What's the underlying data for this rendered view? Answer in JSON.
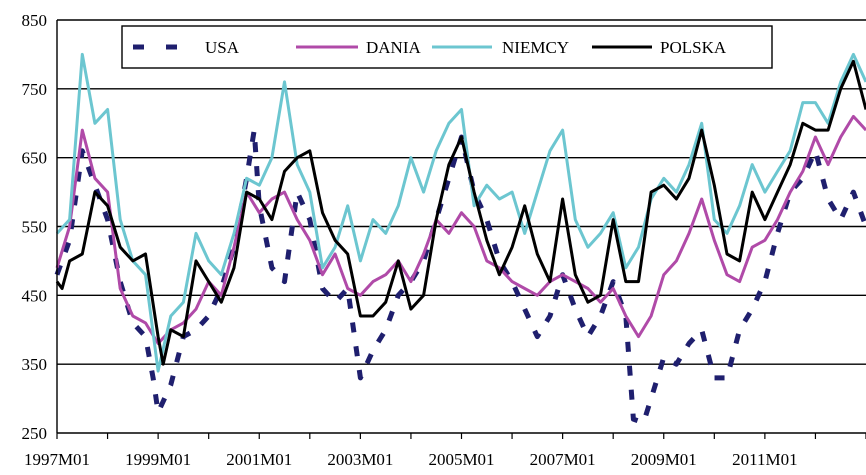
{
  "chart_data": {
    "type": "line",
    "title": "",
    "xlabel": "",
    "ylabel": "",
    "ylim": [
      250,
      850
    ],
    "yticks": [
      250,
      350,
      450,
      550,
      650,
      750,
      850
    ],
    "xlim": [
      1997.0,
      2013.0
    ],
    "xticks": [
      {
        "label": "1997M01",
        "value": 1997
      },
      {
        "label": "1999M01",
        "value": 1999
      },
      {
        "label": "2001M01",
        "value": 2001
      },
      {
        "label": "2003M01",
        "value": 2003
      },
      {
        "label": "2005M01",
        "value": 2005
      },
      {
        "label": "2007M01",
        "value": 2007
      },
      {
        "label": "2009M01",
        "value": 2009
      },
      {
        "label": "2011M01",
        "value": 2011
      }
    ],
    "grid": "horizontal",
    "legend": "top",
    "series": [
      {
        "name": "USA",
        "color": "#1f1f6e",
        "style": "dashed",
        "points": [
          [
            1997.0,
            480
          ],
          [
            1997.25,
            530
          ],
          [
            1997.5,
            660
          ],
          [
            1997.75,
            610
          ],
          [
            1998.0,
            560
          ],
          [
            1998.25,
            470
          ],
          [
            1998.5,
            410
          ],
          [
            1998.75,
            390
          ],
          [
            1998.9,
            330
          ],
          [
            1999.0,
            280
          ],
          [
            1999.25,
            320
          ],
          [
            1999.5,
            390
          ],
          [
            1999.75,
            400
          ],
          [
            2000.0,
            420
          ],
          [
            2000.25,
            460
          ],
          [
            2000.5,
            520
          ],
          [
            2000.75,
            620
          ],
          [
            2000.9,
            690
          ],
          [
            2001.0,
            580
          ],
          [
            2001.25,
            490
          ],
          [
            2001.5,
            470
          ],
          [
            2001.75,
            600
          ],
          [
            2002.0,
            560
          ],
          [
            2002.25,
            460
          ],
          [
            2002.5,
            440
          ],
          [
            2002.75,
            460
          ],
          [
            2003.0,
            330
          ],
          [
            2003.25,
            370
          ],
          [
            2003.5,
            400
          ],
          [
            2003.75,
            450
          ],
          [
            2004.0,
            470
          ],
          [
            2004.25,
            500
          ],
          [
            2004.5,
            560
          ],
          [
            2004.75,
            620
          ],
          [
            2005.0,
            680
          ],
          [
            2005.25,
            600
          ],
          [
            2005.5,
            560
          ],
          [
            2005.75,
            500
          ],
          [
            2006.0,
            470
          ],
          [
            2006.25,
            430
          ],
          [
            2006.5,
            390
          ],
          [
            2006.75,
            420
          ],
          [
            2007.0,
            480
          ],
          [
            2007.25,
            430
          ],
          [
            2007.5,
            390
          ],
          [
            2007.75,
            420
          ],
          [
            2008.0,
            470
          ],
          [
            2008.25,
            420
          ],
          [
            2008.4,
            270
          ],
          [
            2008.6,
            265
          ],
          [
            2008.75,
            300
          ],
          [
            2009.0,
            360
          ],
          [
            2009.25,
            350
          ],
          [
            2009.5,
            380
          ],
          [
            2009.75,
            400
          ],
          [
            2010.0,
            330
          ],
          [
            2010.25,
            330
          ],
          [
            2010.5,
            400
          ],
          [
            2010.75,
            430
          ],
          [
            2011.0,
            470
          ],
          [
            2011.25,
            540
          ],
          [
            2011.5,
            600
          ],
          [
            2011.75,
            620
          ],
          [
            2012.0,
            660
          ],
          [
            2012.25,
            590
          ],
          [
            2012.5,
            560
          ],
          [
            2012.75,
            600
          ],
          [
            2013.0,
            550
          ]
        ]
      },
      {
        "name": "DANIA",
        "color": "#b04aa8",
        "style": "solid",
        "points": [
          [
            1997.0,
            490
          ],
          [
            1997.25,
            550
          ],
          [
            1997.5,
            690
          ],
          [
            1997.75,
            620
          ],
          [
            1998.0,
            600
          ],
          [
            1998.25,
            460
          ],
          [
            1998.5,
            420
          ],
          [
            1998.75,
            410
          ],
          [
            1999.0,
            380
          ],
          [
            1999.25,
            400
          ],
          [
            1999.5,
            410
          ],
          [
            1999.75,
            430
          ],
          [
            2000.0,
            470
          ],
          [
            2000.25,
            450
          ],
          [
            2000.5,
            520
          ],
          [
            2000.75,
            600
          ],
          [
            2001.0,
            570
          ],
          [
            2001.25,
            590
          ],
          [
            2001.5,
            600
          ],
          [
            2001.75,
            560
          ],
          [
            2002.0,
            530
          ],
          [
            2002.25,
            480
          ],
          [
            2002.5,
            510
          ],
          [
            2002.75,
            460
          ],
          [
            2003.0,
            450
          ],
          [
            2003.25,
            470
          ],
          [
            2003.5,
            480
          ],
          [
            2003.75,
            500
          ],
          [
            2004.0,
            470
          ],
          [
            2004.25,
            510
          ],
          [
            2004.5,
            560
          ],
          [
            2004.75,
            540
          ],
          [
            2005.0,
            570
          ],
          [
            2005.25,
            550
          ],
          [
            2005.5,
            500
          ],
          [
            2005.75,
            490
          ],
          [
            2006.0,
            470
          ],
          [
            2006.25,
            460
          ],
          [
            2006.5,
            450
          ],
          [
            2006.75,
            470
          ],
          [
            2007.0,
            480
          ],
          [
            2007.25,
            470
          ],
          [
            2007.5,
            460
          ],
          [
            2007.75,
            440
          ],
          [
            2008.0,
            460
          ],
          [
            2008.25,
            420
          ],
          [
            2008.5,
            390
          ],
          [
            2008.75,
            420
          ],
          [
            2009.0,
            480
          ],
          [
            2009.25,
            500
          ],
          [
            2009.5,
            540
          ],
          [
            2009.75,
            590
          ],
          [
            2010.0,
            530
          ],
          [
            2010.25,
            480
          ],
          [
            2010.5,
            470
          ],
          [
            2010.75,
            520
          ],
          [
            2011.0,
            530
          ],
          [
            2011.25,
            560
          ],
          [
            2011.5,
            600
          ],
          [
            2011.75,
            630
          ],
          [
            2012.0,
            680
          ],
          [
            2012.25,
            640
          ],
          [
            2012.5,
            680
          ],
          [
            2012.75,
            710
          ],
          [
            2013.0,
            690
          ]
        ]
      },
      {
        "name": "NIEMCY",
        "color": "#6cc6d0",
        "style": "solid",
        "points": [
          [
            1997.0,
            540
          ],
          [
            1997.25,
            560
          ],
          [
            1997.5,
            800
          ],
          [
            1997.75,
            700
          ],
          [
            1998.0,
            720
          ],
          [
            1998.25,
            560
          ],
          [
            1998.5,
            500
          ],
          [
            1998.75,
            480
          ],
          [
            1999.0,
            340
          ],
          [
            1999.25,
            420
          ],
          [
            1999.5,
            440
          ],
          [
            1999.75,
            540
          ],
          [
            2000.0,
            500
          ],
          [
            2000.25,
            480
          ],
          [
            2000.5,
            540
          ],
          [
            2000.75,
            620
          ],
          [
            2001.0,
            610
          ],
          [
            2001.25,
            650
          ],
          [
            2001.5,
            760
          ],
          [
            2001.75,
            640
          ],
          [
            2002.0,
            600
          ],
          [
            2002.25,
            490
          ],
          [
            2002.5,
            520
          ],
          [
            2002.75,
            580
          ],
          [
            2003.0,
            500
          ],
          [
            2003.25,
            560
          ],
          [
            2003.5,
            540
          ],
          [
            2003.75,
            580
          ],
          [
            2004.0,
            650
          ],
          [
            2004.25,
            600
          ],
          [
            2004.5,
            660
          ],
          [
            2004.75,
            700
          ],
          [
            2005.0,
            720
          ],
          [
            2005.25,
            580
          ],
          [
            2005.5,
            610
          ],
          [
            2005.75,
            590
          ],
          [
            2006.0,
            600
          ],
          [
            2006.25,
            540
          ],
          [
            2006.5,
            600
          ],
          [
            2006.75,
            660
          ],
          [
            2007.0,
            690
          ],
          [
            2007.25,
            560
          ],
          [
            2007.5,
            520
          ],
          [
            2007.75,
            540
          ],
          [
            2008.0,
            570
          ],
          [
            2008.25,
            490
          ],
          [
            2008.5,
            520
          ],
          [
            2008.75,
            590
          ],
          [
            2009.0,
            620
          ],
          [
            2009.25,
            600
          ],
          [
            2009.5,
            640
          ],
          [
            2009.75,
            700
          ],
          [
            2010.0,
            560
          ],
          [
            2010.25,
            540
          ],
          [
            2010.5,
            580
          ],
          [
            2010.75,
            640
          ],
          [
            2011.0,
            600
          ],
          [
            2011.25,
            630
          ],
          [
            2011.5,
            660
          ],
          [
            2011.75,
            730
          ],
          [
            2012.0,
            730
          ],
          [
            2012.25,
            700
          ],
          [
            2012.5,
            760
          ],
          [
            2012.75,
            800
          ],
          [
            2013.0,
            760
          ]
        ]
      },
      {
        "name": "POLSKA",
        "color": "#000000",
        "style": "solid",
        "points": [
          [
            1997.0,
            470
          ],
          [
            1997.1,
            460
          ],
          [
            1997.25,
            500
          ],
          [
            1997.5,
            510
          ],
          [
            1997.75,
            600
          ],
          [
            1998.0,
            580
          ],
          [
            1998.25,
            520
          ],
          [
            1998.5,
            500
          ],
          [
            1998.75,
            510
          ],
          [
            1999.0,
            390
          ],
          [
            1999.1,
            350
          ],
          [
            1999.25,
            400
          ],
          [
            1999.5,
            390
          ],
          [
            1999.75,
            500
          ],
          [
            2000.0,
            470
          ],
          [
            2000.25,
            440
          ],
          [
            2000.5,
            490
          ],
          [
            2000.75,
            600
          ],
          [
            2001.0,
            590
          ],
          [
            2001.25,
            560
          ],
          [
            2001.5,
            630
          ],
          [
            2001.75,
            650
          ],
          [
            2002.0,
            660
          ],
          [
            2002.25,
            570
          ],
          [
            2002.5,
            530
          ],
          [
            2002.75,
            510
          ],
          [
            2003.0,
            420
          ],
          [
            2003.25,
            420
          ],
          [
            2003.5,
            440
          ],
          [
            2003.75,
            500
          ],
          [
            2004.0,
            430
          ],
          [
            2004.25,
            450
          ],
          [
            2004.5,
            560
          ],
          [
            2004.75,
            640
          ],
          [
            2005.0,
            680
          ],
          [
            2005.25,
            600
          ],
          [
            2005.5,
            530
          ],
          [
            2005.75,
            480
          ],
          [
            2006.0,
            520
          ],
          [
            2006.25,
            580
          ],
          [
            2006.5,
            510
          ],
          [
            2006.75,
            470
          ],
          [
            2007.0,
            590
          ],
          [
            2007.25,
            480
          ],
          [
            2007.5,
            440
          ],
          [
            2007.75,
            450
          ],
          [
            2008.0,
            560
          ],
          [
            2008.25,
            470
          ],
          [
            2008.5,
            470
          ],
          [
            2008.75,
            600
          ],
          [
            2009.0,
            610
          ],
          [
            2009.25,
            590
          ],
          [
            2009.5,
            620
          ],
          [
            2009.75,
            690
          ],
          [
            2010.0,
            610
          ],
          [
            2010.25,
            510
          ],
          [
            2010.5,
            500
          ],
          [
            2010.75,
            600
          ],
          [
            2011.0,
            560
          ],
          [
            2011.25,
            600
          ],
          [
            2011.5,
            640
          ],
          [
            2011.75,
            700
          ],
          [
            2012.0,
            690
          ],
          [
            2012.25,
            690
          ],
          [
            2012.5,
            750
          ],
          [
            2012.75,
            790
          ],
          [
            2013.0,
            720
          ]
        ]
      }
    ]
  }
}
